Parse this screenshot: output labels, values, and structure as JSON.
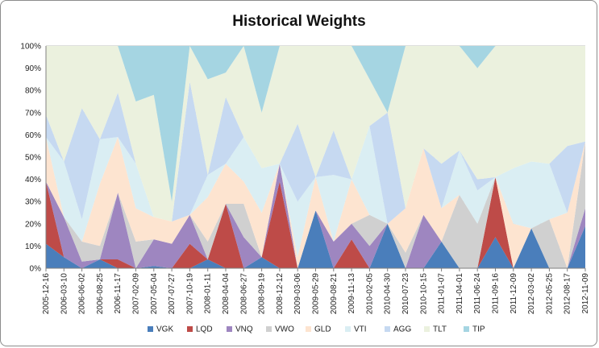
{
  "chart_data": {
    "type": "area",
    "stacked": true,
    "title": "Historical Weights",
    "xlabel": "",
    "ylabel": "",
    "ylim": [
      0,
      100
    ],
    "yticks": [
      "0%",
      "10%",
      "20%",
      "30%",
      "40%",
      "50%",
      "60%",
      "70%",
      "80%",
      "90%",
      "100%"
    ],
    "xticks": [
      "2005-12-16",
      "2006-03-10",
      "2006-06-02",
      "2006-08-25",
      "2006-11-17",
      "2007-02-09",
      "2007-05-04",
      "2007-07-27",
      "2007-10-19",
      "2008-01-11",
      "2008-04-04",
      "2008-06-27",
      "2008-09-19",
      "2008-12-12",
      "2009-03-06",
      "2009-05-29",
      "2009-08-21",
      "2009-11-13",
      "2010-02-05",
      "2010-04-30",
      "2010-07-23",
      "2010-10-15",
      "2011-01-07",
      "2011-04-01",
      "2011-06-24",
      "2011-09-16",
      "2011-12-09",
      "2012-03-02",
      "2012-05-25",
      "2012-08-17",
      "2012-11-09"
    ],
    "grid": true,
    "legend": "bottom",
    "series": [
      {
        "name": "VGK",
        "color": "#4a7ebb",
        "values": [
          11,
          5,
          0,
          4,
          0,
          0,
          1,
          0,
          0,
          4,
          0,
          0,
          5,
          0,
          0,
          26,
          0,
          0,
          0,
          20,
          0,
          0,
          12,
          0,
          0,
          14,
          0,
          18,
          0,
          0,
          19
        ]
      },
      {
        "name": "LQD",
        "color": "#be4b48",
        "values": [
          28,
          0,
          0,
          0,
          4,
          0,
          0,
          0,
          11,
          0,
          29,
          0,
          0,
          39,
          0,
          0,
          0,
          13,
          0,
          0,
          0,
          0,
          0,
          0,
          0,
          27,
          0,
          0,
          0,
          0,
          0
        ]
      },
      {
        "name": "VNQ",
        "color": "#9e86c0",
        "values": [
          0,
          18,
          3,
          0,
          30,
          0,
          12,
          11,
          13,
          0,
          0,
          14,
          0,
          8,
          0,
          0,
          12,
          7,
          10,
          0,
          0,
          24,
          0,
          0,
          0,
          0,
          0,
          0,
          0,
          0,
          8
        ]
      },
      {
        "name": "VWO",
        "color": "#d0d0d0",
        "values": [
          0,
          0,
          9,
          6,
          0,
          12,
          0,
          0,
          0,
          8,
          0,
          15,
          0,
          0,
          0,
          0,
          0,
          0,
          14,
          0,
          7,
          0,
          0,
          33,
          20,
          0,
          0,
          0,
          22,
          0,
          30
        ]
      },
      {
        "name": "GLD",
        "color": "#fde4d0",
        "values": [
          20,
          0,
          0,
          28,
          25,
          15,
          10,
          10,
          0,
          20,
          18,
          10,
          20,
          0,
          5,
          15,
          0,
          20,
          0,
          0,
          20,
          30,
          15,
          0,
          0,
          0,
          20,
          0,
          0,
          25,
          0
        ]
      },
      {
        "name": "VTI",
        "color": "#daeef3",
        "values": [
          0,
          25,
          10,
          20,
          0,
          20,
          0,
          0,
          0,
          10,
          0,
          20,
          20,
          0,
          25,
          0,
          30,
          0,
          40,
          0,
          0,
          0,
          0,
          20,
          15,
          0,
          25,
          30,
          25,
          0,
          0
        ]
      },
      {
        "name": "AGG",
        "color": "#c6d9f1",
        "values": [
          10,
          0,
          50,
          0,
          20,
          0,
          0,
          0,
          60,
          0,
          30,
          0,
          0,
          0,
          35,
          0,
          20,
          0,
          0,
          50,
          0,
          0,
          20,
          0,
          5,
          0,
          0,
          0,
          0,
          30,
          0
        ]
      },
      {
        "name": "TLT",
        "color": "#ebf1de",
        "values": [
          31,
          52,
          28,
          42,
          21,
          28,
          55,
          9,
          16,
          43,
          11,
          41,
          25,
          53,
          35,
          59,
          38,
          60,
          21,
          0,
          73,
          46,
          53,
          47,
          50,
          59,
          55,
          52,
          53,
          45,
          43
        ]
      },
      {
        "name": "TIP",
        "color": "#a5d5e2",
        "values": [
          0,
          0,
          0,
          0,
          0,
          25,
          22,
          70,
          0,
          15,
          12,
          0,
          30,
          0,
          0,
          0,
          0,
          0,
          15,
          30,
          0,
          0,
          0,
          0,
          10,
          0,
          0,
          0,
          0,
          0,
          0
        ]
      }
    ]
  }
}
